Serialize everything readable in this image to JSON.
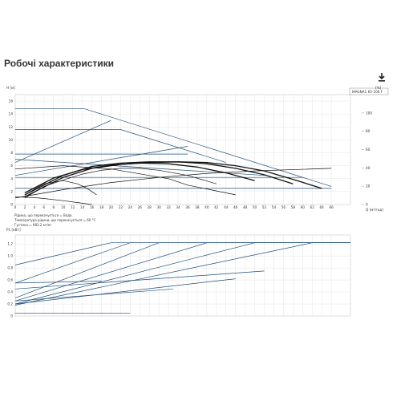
{
  "page": {
    "title": "Робочі характеристики",
    "download_icon": "download-icon"
  },
  "chart_data": [
    {
      "type": "line",
      "title": "",
      "model_label": "MAGNA1 65-100 F",
      "xlabel": "Q [м³/год]",
      "ylabel": "H [м]",
      "y2label": "[%]",
      "x_ticks": [
        "0",
        "2",
        "4",
        "6",
        "8",
        "10",
        "12",
        "14",
        "16",
        "18",
        "20",
        "22",
        "24",
        "26",
        "28",
        "30",
        "32",
        "34",
        "36",
        "38",
        "40",
        "42",
        "44",
        "46",
        "48",
        "50",
        "52",
        "54",
        "56",
        "58",
        "60",
        "62",
        "64",
        "66"
      ],
      "y_ticks": [
        "0",
        "2",
        "4",
        "6",
        "8",
        "10",
        "12",
        "14",
        "16"
      ],
      "y2_ticks": [
        "0",
        "20",
        "40",
        "60",
        "80",
        "100"
      ],
      "xlim": [
        0,
        70
      ],
      "ylim": [
        0,
        17
      ],
      "y2lim": [
        0,
        120
      ],
      "series": [
        {
          "x": [
            0,
            14.5,
            66
          ],
          "y": [
            14.8,
            14.8,
            2.8
          ]
        },
        {
          "x": [
            0,
            22,
            44
          ],
          "y": [
            11.6,
            11.6,
            6.5
          ]
        },
        {
          "x": [
            0,
            36
          ],
          "y": [
            7.8,
            7.8
          ]
        },
        {
          "x": [
            0,
            52
          ],
          "y": [
            7.0,
            4.5
          ]
        },
        {
          "x": [
            0,
            60
          ],
          "y": [
            4.2,
            4.2
          ]
        },
        {
          "x": [
            0,
            66
          ],
          "y": [
            2.5,
            2.5
          ]
        },
        {
          "x": [
            0,
            20
          ],
          "y": [
            6.5,
            13.0
          ]
        },
        {
          "x": [
            0,
            36
          ],
          "y": [
            4.5,
            9.0
          ]
        },
        {
          "x": [
            0,
            10,
            20,
            30,
            40,
            50,
            66
          ],
          "y": [
            1.0,
            2.3,
            3.4,
            4.2,
            4.8,
            5.2,
            5.6
          ]
        },
        {
          "x": [
            0,
            10,
            20,
            32,
            36,
            46
          ],
          "y": [
            5.5,
            6.0,
            5.5,
            4.0,
            3.0,
            1.5
          ]
        },
        {
          "x": [
            0,
            5,
            10,
            14,
            16
          ],
          "y": [
            1.2,
            1.0,
            0.6,
            0.2,
            0.0
          ]
        },
        {
          "x": [
            2,
            10,
            16,
            22,
            28,
            34,
            40,
            46,
            52,
            58,
            64
          ],
          "y": [
            1.2,
            4.2,
            5.6,
            6.2,
            6.5,
            6.6,
            6.5,
            6.0,
            5.2,
            3.9,
            2.5
          ]
        },
        {
          "x": [
            2,
            10,
            16,
            22,
            28,
            34,
            40,
            46,
            52,
            58
          ],
          "y": [
            1.5,
            4.5,
            5.9,
            6.4,
            6.6,
            6.6,
            6.3,
            5.6,
            4.6,
            3.2
          ]
        },
        {
          "x": [
            2,
            8,
            14,
            20,
            26,
            32,
            38,
            44,
            50
          ],
          "y": [
            1.8,
            4.1,
            5.4,
            6.1,
            6.4,
            6.3,
            5.8,
            4.9,
            3.7
          ]
        },
        {
          "x": [
            2,
            6,
            10,
            14,
            18,
            22,
            26,
            30,
            36,
            42
          ],
          "y": [
            1.0,
            2.8,
            3.8,
            4.7,
            5.3,
            5.6,
            5.6,
            5.3,
            4.5,
            3.2
          ]
        },
        {
          "x": [
            2,
            6,
            10,
            13,
            15,
            17
          ],
          "y": [
            1.5,
            3.2,
            3.7,
            3.2,
            2.5,
            1.5
          ]
        }
      ]
    },
    {
      "type": "line",
      "title": "",
      "ylabel": "P1 [кВт]",
      "xlim": [
        0,
        70
      ],
      "ylim": [
        0,
        1.35
      ],
      "y_ticks": [
        "0",
        "0.2",
        "0.4",
        "0.6",
        "0.8",
        "1.0",
        "1.2"
      ],
      "series": [
        {
          "x": [
            0,
            20,
            74
          ],
          "y": [
            0.85,
            1.22,
            1.22
          ]
        },
        {
          "x": [
            0,
            24,
            74
          ],
          "y": [
            0.55,
            1.22,
            1.22
          ]
        },
        {
          "x": [
            0,
            30,
            74
          ],
          "y": [
            0.3,
            1.22,
            1.22
          ]
        },
        {
          "x": [
            0,
            40,
            74
          ],
          "y": [
            0.25,
            1.22,
            1.22
          ]
        },
        {
          "x": [
            0,
            50,
            74
          ],
          "y": [
            0.2,
            1.22,
            1.22
          ]
        },
        {
          "x": [
            0,
            62,
            74
          ],
          "y": [
            0.18,
            1.22,
            1.22
          ]
        },
        {
          "x": [
            0,
            52
          ],
          "y": [
            0.45,
            0.75
          ]
        },
        {
          "x": [
            0,
            46
          ],
          "y": [
            0.2,
            0.62
          ]
        },
        {
          "x": [
            0,
            33
          ],
          "y": [
            0.25,
            0.45
          ]
        },
        {
          "x": [
            0,
            24
          ],
          "y": [
            0.05,
            0.05
          ]
        },
        {
          "x": [
            0,
            18
          ],
          "y": [
            0.55,
            0.58
          ]
        }
      ]
    }
  ],
  "notes": [
    "Рідина, що перекачується = Вода",
    "Температура рідини, що перекачується = 60 °C",
    "Густина = 983.2 кг/м³"
  ]
}
